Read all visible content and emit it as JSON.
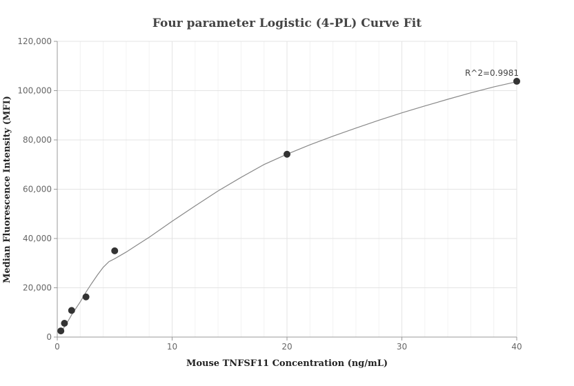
{
  "chart_data": {
    "type": "scatter",
    "title": "Four parameter Logistic (4-PL) Curve Fit",
    "xlabel": "Mouse TNFSF11 Concentration (ng/mL)",
    "ylabel": "Median Fluorescence Intensity (MFI)",
    "xlim": [
      0,
      40
    ],
    "ylim": [
      0,
      120000
    ],
    "x_ticks": [
      0,
      10,
      20,
      30,
      40
    ],
    "x_tick_labels": [
      "0",
      "10",
      "20",
      "30",
      "40"
    ],
    "y_ticks": [
      0,
      20000,
      40000,
      60000,
      80000,
      100000,
      120000
    ],
    "y_tick_labels": [
      "0",
      "20,000",
      "40,000",
      "60,000",
      "80,000",
      "100,000",
      "120,000"
    ],
    "x_minor_step": 2,
    "grid": true,
    "series": [
      {
        "kind": "points",
        "color": "#333333",
        "x": [
          0.3125,
          0.625,
          1.25,
          2.5,
          5,
          20,
          40
        ],
        "y": [
          2500,
          5600,
          10800,
          16300,
          35000,
          74200,
          103800
        ]
      },
      {
        "kind": "fit-curve",
        "color": "#888888",
        "x": [
          0.3125,
          0.625,
          1,
          1.25,
          2,
          2.5,
          3,
          3.5,
          4,
          4.5,
          5,
          6,
          7,
          8,
          10,
          12,
          14,
          16,
          18,
          20,
          22,
          24,
          26,
          28,
          30,
          32,
          34,
          36,
          38,
          40
        ],
        "y": [
          1800,
          4200,
          7000,
          9000,
          14300,
          18200,
          21800,
          25200,
          28300,
          30600,
          31800,
          34500,
          37500,
          40500,
          47000,
          53200,
          59300,
          64800,
          70000,
          74200,
          78000,
          81500,
          84800,
          88000,
          91000,
          93800,
          96500,
          99100,
          101500,
          103600
        ]
      }
    ],
    "annotations": [
      {
        "text": "R^2=0.9981",
        "x": 40,
        "y": 103800
      }
    ]
  }
}
